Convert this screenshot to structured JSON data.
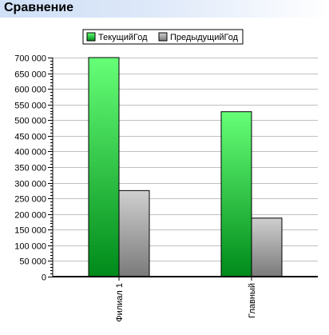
{
  "header": {
    "title": "Сравнение"
  },
  "colors": {
    "current_top": "#66ff77",
    "current_bottom": "#008a1a",
    "previous_top": "#cfcfcf",
    "previous_bottom": "#7a7a7a",
    "grid": "#c0c0c0",
    "title_bar": "#cfe0f7"
  },
  "chart_data": {
    "type": "bar",
    "title": "",
    "xlabel": "",
    "ylabel": "",
    "categories": [
      "Филиал 1",
      "Главный"
    ],
    "series": [
      {
        "name": "ТекущийГод",
        "values": [
          700000,
          527000
        ]
      },
      {
        "name": "ПредыдущийГод",
        "values": [
          275000,
          187000
        ]
      }
    ],
    "ylim": [
      0,
      700000
    ],
    "y_ticks": [
      0,
      50000,
      100000,
      150000,
      200000,
      250000,
      300000,
      350000,
      400000,
      450000,
      500000,
      550000,
      600000,
      650000,
      700000
    ],
    "y_tick_labels": [
      "0",
      "50 000",
      "100 000",
      "150 000",
      "200 000",
      "250 000",
      "300 000",
      "350 000",
      "400 000",
      "450 000",
      "500 000",
      "550 000",
      "600 000",
      "650 000",
      "700 000"
    ],
    "grid": true,
    "legend_position": "top-center"
  }
}
